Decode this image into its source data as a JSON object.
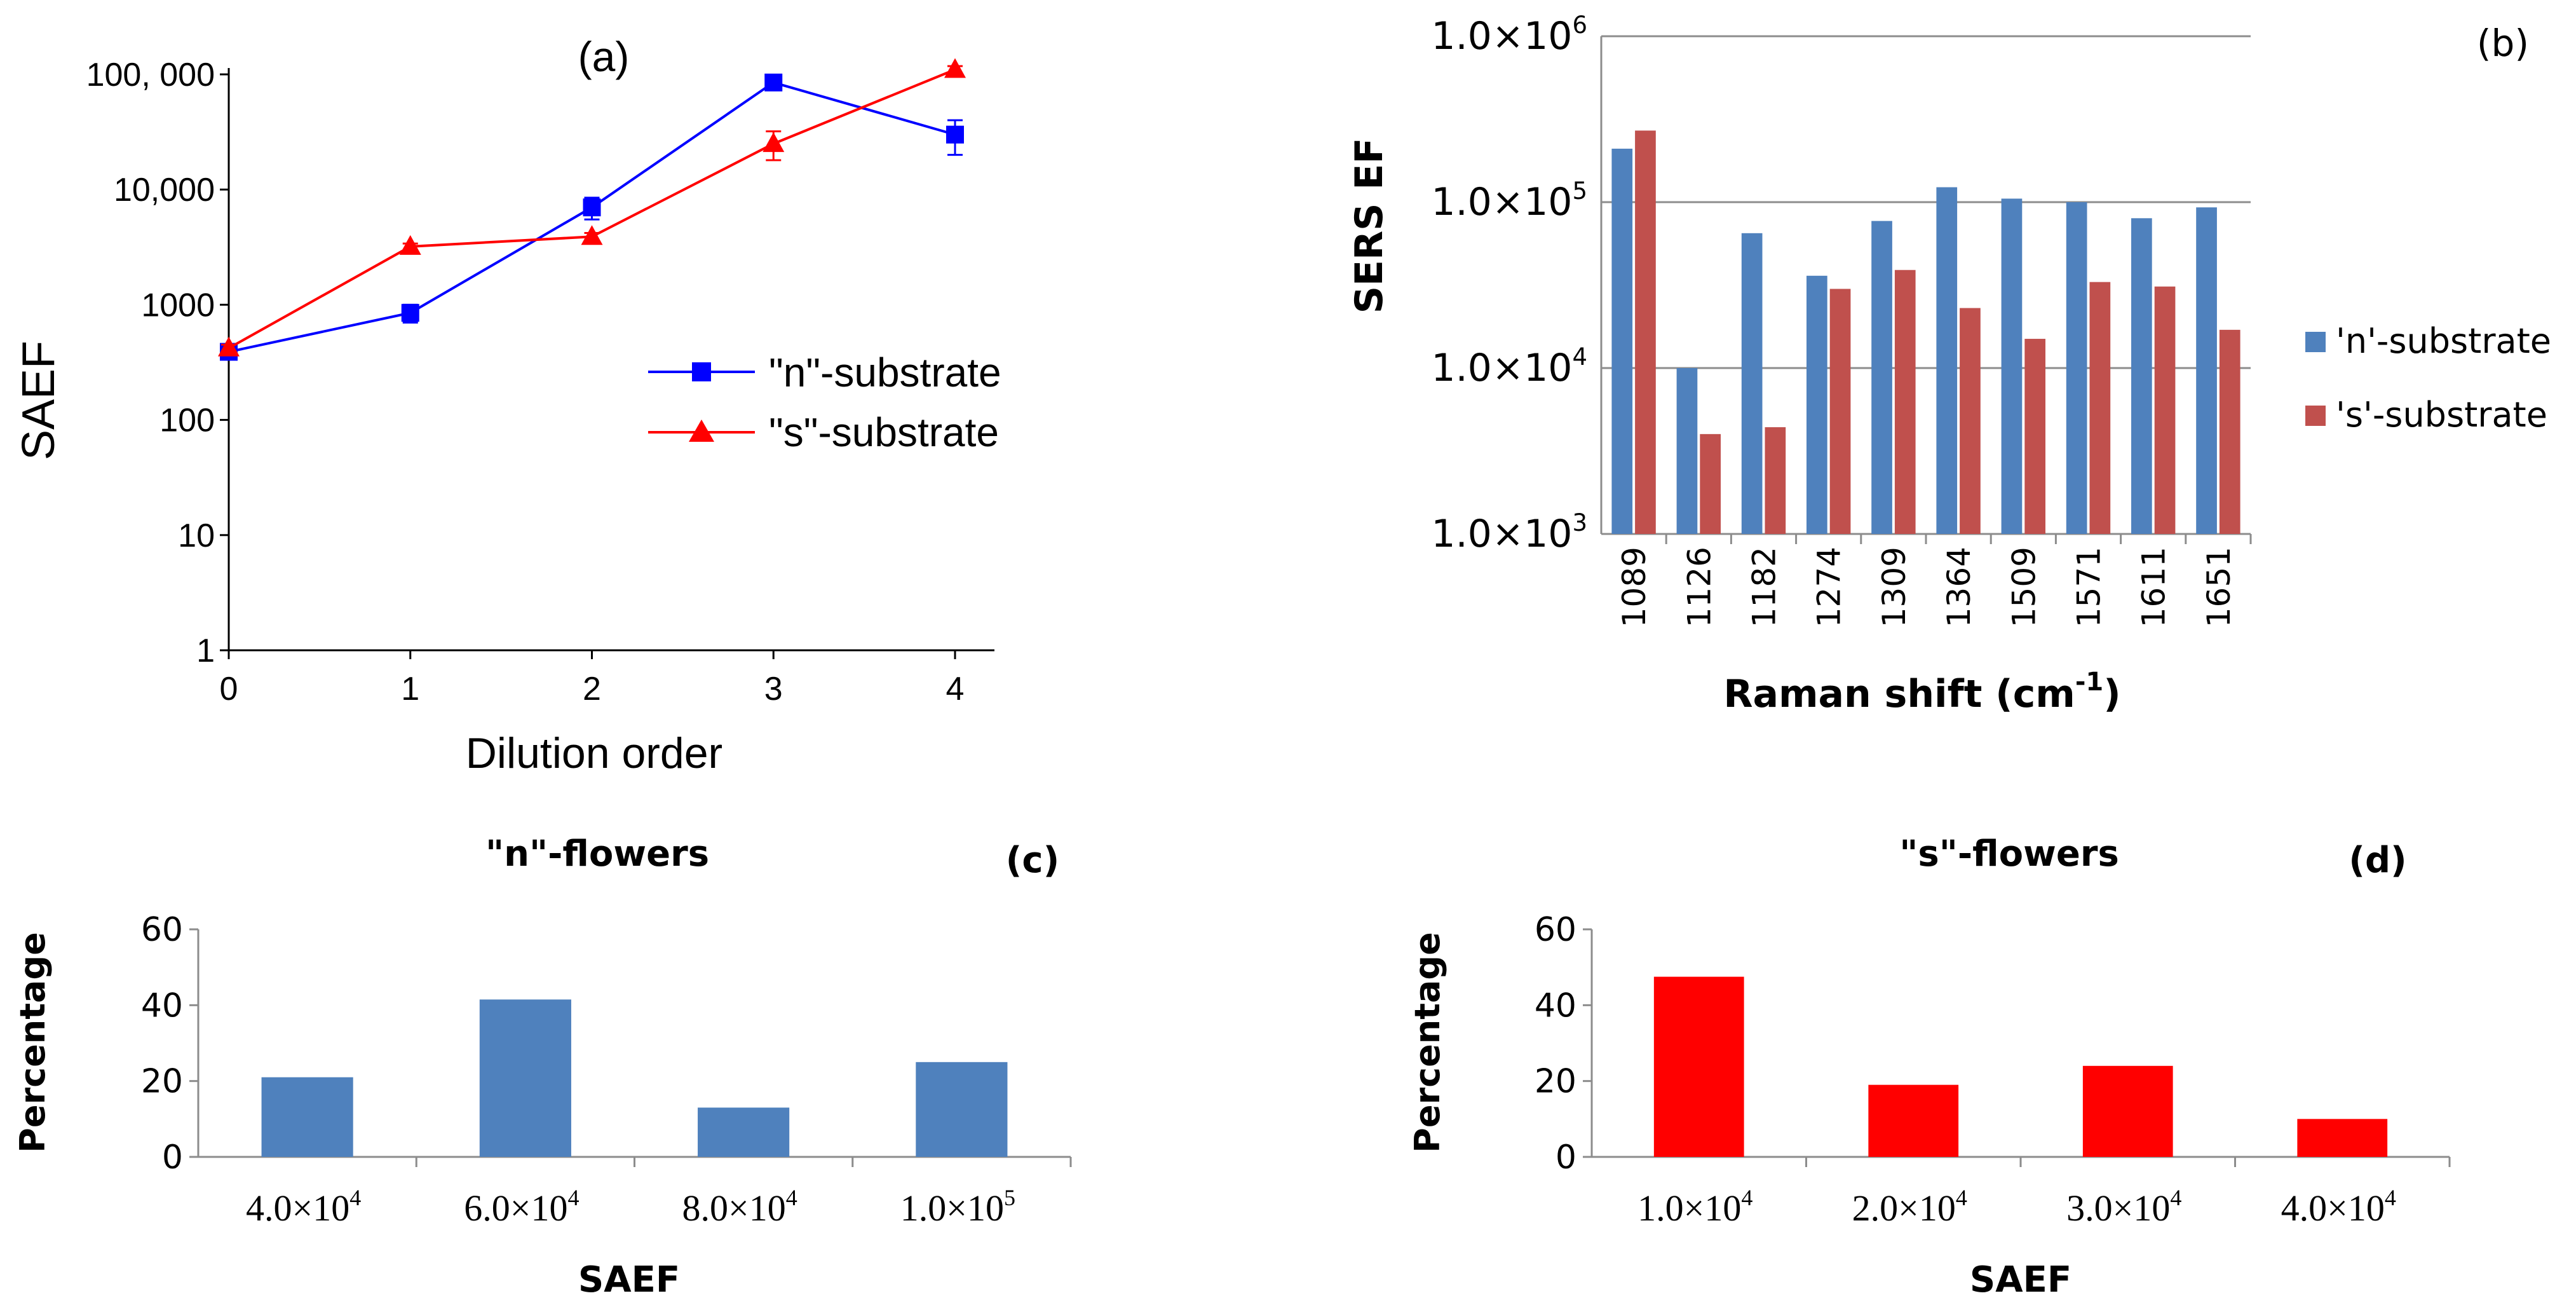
{
  "chart_data": [
    {
      "panel": "(a)",
      "type": "line",
      "xlabel": "Dilution order",
      "ylabel": "SAEF",
      "yscale": "log",
      "ylim": [
        1,
        100000
      ],
      "x": [
        0,
        1,
        2,
        3,
        4
      ],
      "x_ticks": [
        "0",
        "1",
        "2",
        "3",
        "4"
      ],
      "y_ticks": [
        "1",
        "10",
        "100",
        "1000",
        "10,000",
        "100, 000"
      ],
      "series": [
        {
          "name": "\"n\"-substrate",
          "marker": "square",
          "color": "#0000ff",
          "values": [
            390,
            850,
            7000,
            85000,
            30000
          ],
          "err": [
            30,
            150,
            1500,
            6000,
            10000
          ]
        },
        {
          "name": "\"s\"-substrate",
          "marker": "triangle",
          "color": "#ff0000",
          "values": [
            420,
            3200,
            3900,
            25000,
            110000
          ],
          "err": [
            30,
            200,
            300,
            7000,
            8000
          ]
        }
      ]
    },
    {
      "panel": "(b)",
      "type": "bar",
      "xlabel_main": "Raman shift (cm",
      "xlabel_sup": "-1",
      "xlabel_end": ")",
      "ylabel": "SERS EF",
      "yscale": "log",
      "ylim": [
        1000,
        1000000
      ],
      "y_ticks": [
        {
          "base": "1.0×10",
          "exp": "3"
        },
        {
          "base": "1.0×10",
          "exp": "4"
        },
        {
          "base": "1.0×10",
          "exp": "5"
        },
        {
          "base": "1.0×10",
          "exp": "6"
        }
      ],
      "categories": [
        "1089",
        "1126",
        "1182",
        "1274",
        "1309",
        "1364",
        "1509",
        "1571",
        "1611",
        "1651"
      ],
      "series": [
        {
          "name": "'n'-substrate",
          "color": "#4f81bd",
          "values": [
            210000,
            10000,
            65000,
            36000,
            77000,
            123000,
            105000,
            100000,
            80000,
            93000
          ]
        },
        {
          "name": "'s'-substrate",
          "color": "#c0504d",
          "values": [
            270000,
            4000,
            4400,
            30000,
            39000,
            23000,
            15000,
            33000,
            31000,
            17000
          ]
        }
      ]
    },
    {
      "panel": "(c)",
      "type": "bar",
      "title": "\"n\"-flowers",
      "xlabel": "SAEF",
      "ylabel": "Percentage",
      "ylim": [
        0,
        60
      ],
      "y_ticks": [
        "0",
        "20",
        "40",
        "60"
      ],
      "categories": [
        {
          "base": "4.0×10",
          "exp": "4"
        },
        {
          "base": "6.0×10",
          "exp": "4"
        },
        {
          "base": "8.0×10",
          "exp": "4"
        },
        {
          "base": "1.0×10",
          "exp": "5"
        }
      ],
      "values": [
        21,
        41.5,
        13,
        25
      ],
      "color": "#4f81bd"
    },
    {
      "panel": "(d)",
      "type": "bar",
      "title": "\"s\"-flowers",
      "xlabel": "SAEF",
      "ylabel": "Percentage",
      "ylim": [
        0,
        60
      ],
      "y_ticks": [
        "0",
        "20",
        "40",
        "60"
      ],
      "categories": [
        {
          "base": "1.0×10",
          "exp": "4"
        },
        {
          "base": "2.0×10",
          "exp": "4"
        },
        {
          "base": "3.0×10",
          "exp": "4"
        },
        {
          "base": "4.0×10",
          "exp": "4"
        }
      ],
      "values": [
        47.5,
        19,
        24,
        10
      ],
      "color": "#ff0000"
    }
  ]
}
